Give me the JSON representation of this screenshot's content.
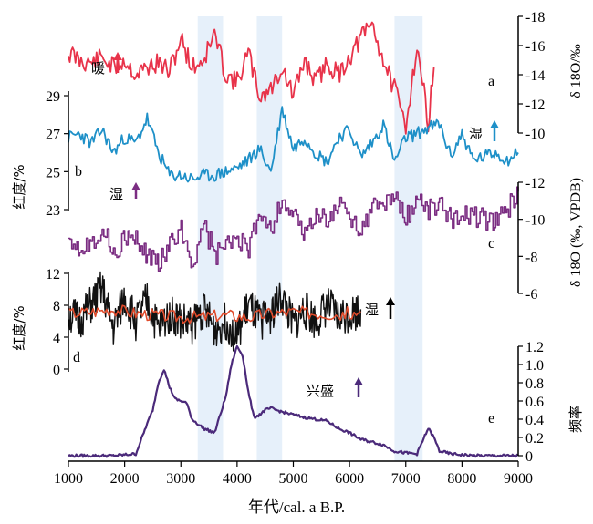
{
  "x_axis": {
    "label": "年代/cal. a B.P.",
    "ticks": [
      "1000",
      "2000",
      "3000",
      "4000",
      "5000",
      "6000",
      "7000",
      "8000",
      "9000"
    ]
  },
  "left_axis_upper": {
    "label": "红度/%",
    "ticks": [
      "29",
      "27",
      "25",
      "23"
    ]
  },
  "left_axis_lower": {
    "label": "红度/%",
    "ticks": [
      "12",
      "8",
      "4",
      "0"
    ]
  },
  "right_axis_a": {
    "label": "δ 18O/‰",
    "ticks": [
      "-10",
      "-12",
      "-14",
      "-16",
      "-18"
    ]
  },
  "right_axis_c": {
    "label": "δ 18O (‰, VPDB)",
    "ticks": [
      "-12",
      "-10",
      "-8",
      "-6"
    ]
  },
  "right_axis_e": {
    "label": "频率",
    "ticks": [
      "1.2",
      "1.0",
      "0.8",
      "0.6",
      "0.4",
      "0.2",
      "0"
    ]
  },
  "annotations": {
    "warm": "暖",
    "wet_b": "湿",
    "wet_c": "湿",
    "wet_d": "湿",
    "flourish": "兴盛",
    "panel_a": "a",
    "panel_b": "b",
    "panel_c": "c",
    "panel_d": "d",
    "panel_e": "e"
  },
  "colors": {
    "a": "#e8334a",
    "b": "#1e90c8",
    "b_light": "#7ab8d6",
    "c": "#7b2d82",
    "d": "#111111",
    "d_smooth": "#e04a2a",
    "e": "#4b2a7a",
    "shade": "#e6f0fa",
    "arrow_red": "#e8334a",
    "arrow_blue": "#1e90c8",
    "arrow_purple": "#7b2d82",
    "arrow_black": "#000000",
    "arrow_dark": "#4b2a7a"
  },
  "chart_data": [
    {
      "type": "line",
      "id": "a",
      "xlim": [
        1000,
        9000
      ],
      "ylim": [
        -18,
        -10
      ],
      "y_reversed": true,
      "series": [
        {
          "x": [
            1000,
            1200,
            1400,
            1600,
            1800,
            2000,
            2200,
            2400,
            2600,
            2800,
            3000,
            3200,
            3400,
            3600,
            3800,
            4000,
            4200,
            4400,
            4600,
            4800,
            5000,
            5200,
            5400,
            5600,
            5800,
            6000,
            6200,
            6400,
            6600,
            6800,
            7000,
            7200,
            7400,
            7500
          ],
          "values": [
            -15.5,
            -15.0,
            -14.8,
            -15.2,
            -14.5,
            -15.0,
            -14.0,
            -14.5,
            -14.8,
            -14.2,
            -16.5,
            -14.5,
            -15.0,
            -16.8,
            -14.0,
            -13.5,
            -15.5,
            -12.5,
            -13.0,
            -14.5,
            -12.5,
            -15.0,
            -13.5,
            -14.8,
            -14.0,
            -15.2,
            -16.5,
            -17.5,
            -15.0,
            -13.0,
            -10.5,
            -16.0,
            -10.8,
            -14.5
          ]
        }
      ]
    },
    {
      "type": "line",
      "id": "b",
      "xlim": [
        1000,
        9000
      ],
      "ylim": [
        23,
        29
      ],
      "series": [
        {
          "x": [
            1000,
            1200,
            1400,
            1600,
            1800,
            2000,
            2200,
            2400,
            2600,
            2800,
            3000,
            3200,
            3400,
            3600,
            3800,
            4000,
            4200,
            4400,
            4600,
            4800,
            5000,
            5200,
            5400,
            5600,
            5800,
            6000,
            6200,
            6400,
            6600,
            6800,
            7000,
            7200,
            7400,
            7600,
            7800,
            8000,
            8200,
            8400,
            8600,
            8800,
            9000
          ],
          "values": [
            26.8,
            27.0,
            26.5,
            27.2,
            26.0,
            26.8,
            26.5,
            27.8,
            26.0,
            24.8,
            24.8,
            24.6,
            24.8,
            24.8,
            25.0,
            25.2,
            25.6,
            26.2,
            25.0,
            28.3,
            26.2,
            26.8,
            26.0,
            25.5,
            26.8,
            27.2,
            25.8,
            26.5,
            27.5,
            25.5,
            26.8,
            27.0,
            27.3,
            27.5,
            25.8,
            27.0,
            25.6,
            25.8,
            26.0,
            25.6,
            26.0
          ]
        }
      ]
    },
    {
      "type": "line",
      "id": "c",
      "xlim": [
        1000,
        9000
      ],
      "ylim": [
        -12,
        -6
      ],
      "y_reversed": true,
      "series": [
        {
          "x": [
            1000,
            1200,
            1400,
            1600,
            1800,
            2000,
            2200,
            2400,
            2600,
            2800,
            3000,
            3200,
            3400,
            3600,
            3800,
            4000,
            4200,
            4400,
            4600,
            4800,
            5000,
            5200,
            5400,
            5600,
            5800,
            6000,
            6200,
            6400,
            6600,
            6800,
            7000,
            7200,
            7400,
            7600,
            7800,
            8000,
            8200,
            8400,
            8600,
            8800,
            9000
          ],
          "values": [
            -9.2,
            -8.5,
            -8.8,
            -9.5,
            -8.2,
            -9.0,
            -8.8,
            -8.0,
            -7.8,
            -8.5,
            -9.5,
            -7.5,
            -9.8,
            -8.0,
            -8.5,
            -9.0,
            -8.2,
            -10.5,
            -9.5,
            -11.0,
            -10.2,
            -9.0,
            -10.5,
            -9.8,
            -10.8,
            -10.0,
            -9.5,
            -10.5,
            -10.8,
            -11.2,
            -10.0,
            -11.2,
            -10.5,
            -10.8,
            -10.0,
            -10.5,
            -10.2,
            -10.0,
            -9.8,
            -10.5,
            -11.5
          ]
        }
      ]
    },
    {
      "type": "line",
      "id": "d",
      "xlim": [
        1000,
        9000
      ],
      "ylim": [
        0,
        12
      ],
      "series": [
        {
          "x": [
            1000,
            1200,
            1400,
            1600,
            1800,
            2000,
            2200,
            2400,
            2600,
            2800,
            3000,
            3200,
            3400,
            3600,
            3800,
            4000,
            4200,
            4400,
            4600,
            4800,
            5000,
            5200,
            5400,
            5600,
            5800,
            6000,
            6200
          ],
          "values": [
            7.0,
            6.0,
            8.0,
            10.0,
            5.0,
            9.0,
            6.0,
            8.5,
            5.0,
            7.0,
            6.0,
            5.5,
            7.5,
            5.0,
            6.0,
            4.0,
            8.0,
            6.0,
            7.0,
            9.0,
            5.5,
            7.5,
            6.0,
            8.0,
            6.5,
            7.0,
            7.5
          ]
        },
        {
          "x": [
            1000,
            1400,
            1800,
            2200,
            2600,
            3000,
            3400,
            3800,
            4200,
            4600,
            5000,
            5400,
            5800,
            6200
          ],
          "values": [
            7.0,
            7.2,
            7.5,
            7.0,
            6.8,
            6.5,
            6.6,
            6.8,
            6.5,
            7.0,
            7.2,
            7.0,
            6.9,
            7.2
          ]
        }
      ]
    },
    {
      "type": "line",
      "id": "e",
      "xlim": [
        1000,
        9000
      ],
      "ylim": [
        0,
        1.2
      ],
      "series": [
        {
          "x": [
            1000,
            1200,
            1400,
            1600,
            1800,
            2000,
            2200,
            2400,
            2500,
            2600,
            2700,
            2800,
            2900,
            3000,
            3100,
            3200,
            3400,
            3600,
            3800,
            3900,
            4000,
            4100,
            4200,
            4300,
            4400,
            4500,
            4600,
            4700,
            4800,
            5000,
            5200,
            5400,
            5600,
            5800,
            6000,
            6200,
            6400,
            6600,
            6800,
            7000,
            7200,
            7400,
            7500,
            7600,
            7800,
            8000,
            8200,
            8400,
            8600,
            8800,
            9000
          ],
          "values": [
            0,
            0,
            0,
            0,
            0,
            0.01,
            0.02,
            0.35,
            0.5,
            0.8,
            0.95,
            0.75,
            0.62,
            0.6,
            0.58,
            0.4,
            0.3,
            0.25,
            0.65,
            1.0,
            1.2,
            1.1,
            0.7,
            0.42,
            0.45,
            0.5,
            0.52,
            0.5,
            0.48,
            0.45,
            0.42,
            0.4,
            0.38,
            0.3,
            0.25,
            0.18,
            0.15,
            0.12,
            0.05,
            0.03,
            0.02,
            0.3,
            0.2,
            0.05,
            0.02,
            0.01,
            0,
            0,
            0,
            0,
            0
          ]
        }
      ]
    }
  ]
}
